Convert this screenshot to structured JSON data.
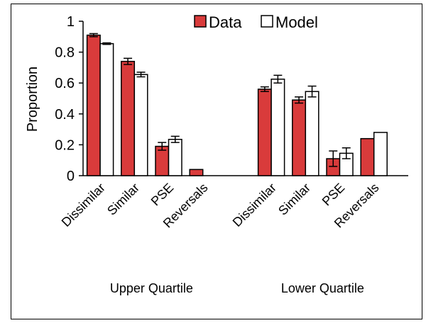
{
  "chart_data": {
    "type": "bar",
    "ylabel": "Proportion",
    "ylim": [
      0,
      1
    ],
    "yticks": [
      "0",
      "0.2",
      "0.4",
      "0.6",
      "0.8",
      "1"
    ],
    "grid": false,
    "legend_position": "top-right",
    "groups": [
      {
        "label": "Upper Quartile",
        "categories": [
          "Dissimilar",
          "Similar",
          "PSE",
          "Reversals"
        ]
      },
      {
        "label": "Lower Quartile",
        "categories": [
          "Dissimilar",
          "Similar",
          "PSE",
          "Reversals"
        ]
      }
    ],
    "series": [
      {
        "name": "Data",
        "color": "#d93b3b",
        "values": [
          0.91,
          0.74,
          0.19,
          0.04,
          0.56,
          0.49,
          0.11,
          0.24
        ],
        "errors": [
          0.01,
          0.02,
          0.025,
          null,
          0.015,
          0.02,
          0.05,
          null
        ]
      },
      {
        "name": "Model",
        "color": "#ffffff",
        "values": [
          0.855,
          0.655,
          0.235,
          null,
          0.625,
          0.545,
          0.145,
          0.28
        ],
        "errors": [
          0.005,
          0.015,
          0.02,
          null,
          0.025,
          0.035,
          0.035,
          null
        ]
      }
    ]
  }
}
